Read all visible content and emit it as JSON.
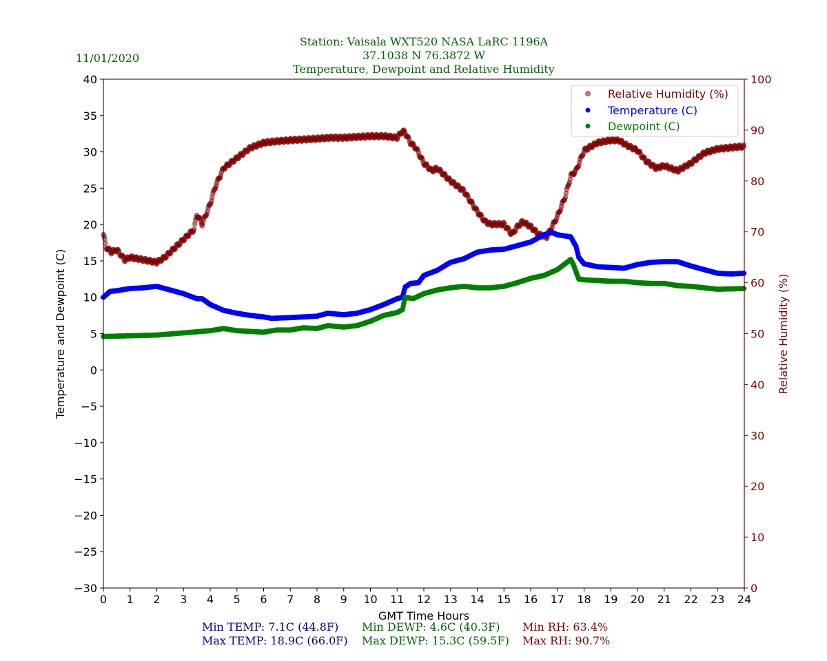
{
  "date": "11/01/2020",
  "title_lines": [
    "Station:  Vaisala WXT520  NASA LaRC 1196A",
    "37.1038 N 76.3872 W",
    "Temperature, Dewpoint and Relative Humidity"
  ],
  "stats": {
    "min_temp": "Min TEMP: 7.1C (44.8F)",
    "max_temp": "Max TEMP: 18.9C (66.0F)",
    "min_dewp": "Min DEWP: 4.6C (40.3F)",
    "max_dewp": "Max DEWP: 15.3C (59.5F)",
    "min_rh": "Min RH: 63.4%",
    "max_rh": "Max RH: 90.7%"
  },
  "colors": {
    "temp": "#0000ff",
    "dew": "#008000",
    "rh": "#800000",
    "title": "#006400",
    "stat_temp": "#00008b",
    "stat_dew": "#006400",
    "stat_rh": "#8b0000"
  },
  "chart_data": {
    "type": "scatter",
    "xlabel": "GMT Time Hours",
    "ylabel": "Temperature and Dewpoint (C)",
    "y2label": "Relative Humidity (%)",
    "xlim": [
      0,
      24
    ],
    "ylim": [
      -30,
      40
    ],
    "y2lim": [
      0,
      100
    ],
    "xticks": [
      0,
      1,
      2,
      3,
      4,
      5,
      6,
      7,
      8,
      9,
      10,
      11,
      12,
      13,
      14,
      15,
      16,
      17,
      18,
      19,
      20,
      21,
      22,
      23,
      24
    ],
    "yticks": [
      -30,
      -25,
      -20,
      -15,
      -10,
      -5,
      0,
      5,
      10,
      15,
      20,
      25,
      30,
      35,
      40
    ],
    "y2ticks": [
      0,
      10,
      20,
      30,
      40,
      50,
      60,
      70,
      80,
      90,
      100
    ],
    "legend_position": "top-right",
    "series": [
      {
        "name": "Relative Humidity (%)",
        "axis": "right",
        "points": [
          [
            0,
            69.5
          ],
          [
            0.1,
            67
          ],
          [
            0.3,
            66
          ],
          [
            0.5,
            66.5
          ],
          [
            0.8,
            64.5
          ],
          [
            1,
            65
          ],
          [
            1.5,
            64.5
          ],
          [
            2,
            64
          ],
          [
            2.3,
            65
          ],
          [
            2.5,
            66
          ],
          [
            3,
            68.5
          ],
          [
            3.4,
            70.5
          ],
          [
            3.5,
            73.5
          ],
          [
            3.7,
            71.5
          ],
          [
            4,
            75.5
          ],
          [
            4.2,
            79
          ],
          [
            4.5,
            82.5
          ],
          [
            5,
            84.5
          ],
          [
            5.5,
            86.5
          ],
          [
            6,
            87.5
          ],
          [
            6.5,
            87.8
          ],
          [
            7,
            88
          ],
          [
            8,
            88.3
          ],
          [
            8.5,
            88.5
          ],
          [
            9,
            88.5
          ],
          [
            10,
            88.8
          ],
          [
            10.5,
            88.8
          ],
          [
            11,
            88.5
          ],
          [
            11.2,
            89.8
          ],
          [
            11.3,
            89.5
          ],
          [
            11.5,
            87.5
          ],
          [
            11.7,
            86.5
          ],
          [
            12,
            83.5
          ],
          [
            12.3,
            82
          ],
          [
            12.5,
            82.5
          ],
          [
            13,
            80
          ],
          [
            13.5,
            78
          ],
          [
            14,
            74
          ],
          [
            14.3,
            72
          ],
          [
            14.5,
            71.5
          ],
          [
            15,
            71.5
          ],
          [
            15.3,
            69.5
          ],
          [
            15.5,
            71
          ],
          [
            15.7,
            72
          ],
          [
            16,
            71
          ],
          [
            16.3,
            69.5
          ],
          [
            16.6,
            69
          ],
          [
            17,
            73
          ],
          [
            17.3,
            77
          ],
          [
            17.5,
            81
          ],
          [
            17.7,
            82
          ],
          [
            18,
            86
          ],
          [
            18.5,
            87.5
          ],
          [
            19,
            88
          ],
          [
            19.3,
            88
          ],
          [
            19.6,
            87
          ],
          [
            20,
            86
          ],
          [
            20.3,
            84
          ],
          [
            20.7,
            82.5
          ],
          [
            21,
            83
          ],
          [
            21.5,
            82
          ],
          [
            22,
            83.5
          ],
          [
            22.5,
            85.5
          ],
          [
            23,
            86.3
          ],
          [
            24,
            86.8
          ]
        ]
      },
      {
        "name": "Temperature (C)",
        "axis": "left",
        "points": [
          [
            0,
            10
          ],
          [
            0.25,
            10.8
          ],
          [
            0.5,
            10.9
          ],
          [
            1,
            11.2
          ],
          [
            1.5,
            11.3
          ],
          [
            2,
            11.5
          ],
          [
            2.5,
            11
          ],
          [
            3,
            10.5
          ],
          [
            3.5,
            9.8
          ],
          [
            3.7,
            9.8
          ],
          [
            4,
            9
          ],
          [
            4.5,
            8.2
          ],
          [
            5,
            7.8
          ],
          [
            5.5,
            7.5
          ],
          [
            6,
            7.3
          ],
          [
            6.3,
            7.1
          ],
          [
            7,
            7.2
          ],
          [
            7.5,
            7.3
          ],
          [
            8,
            7.4
          ],
          [
            8.4,
            7.8
          ],
          [
            9,
            7.6
          ],
          [
            9.5,
            7.8
          ],
          [
            10,
            8.3
          ],
          [
            10.5,
            9
          ],
          [
            11,
            9.8
          ],
          [
            11.2,
            10
          ],
          [
            11.3,
            11.4
          ],
          [
            11.5,
            11.9
          ],
          [
            11.8,
            12
          ],
          [
            12,
            13
          ],
          [
            12.5,
            13.7
          ],
          [
            13,
            14.8
          ],
          [
            13.5,
            15.3
          ],
          [
            14,
            16.2
          ],
          [
            14.5,
            16.5
          ],
          [
            15,
            16.6
          ],
          [
            15.5,
            17.1
          ],
          [
            16,
            17.6
          ],
          [
            16.5,
            18.6
          ],
          [
            16.8,
            18.9
          ],
          [
            17,
            18.6
          ],
          [
            17.5,
            18.3
          ],
          [
            17.7,
            17
          ],
          [
            17.8,
            15.5
          ],
          [
            18,
            14.6
          ],
          [
            18.5,
            14.2
          ],
          [
            19,
            14.1
          ],
          [
            19.5,
            14
          ],
          [
            20,
            14.5
          ],
          [
            20.5,
            14.8
          ],
          [
            21,
            14.9
          ],
          [
            21.5,
            14.9
          ],
          [
            22,
            14.3
          ],
          [
            22.5,
            13.8
          ],
          [
            23,
            13.3
          ],
          [
            23.5,
            13.2
          ],
          [
            24,
            13.3
          ]
        ]
      },
      {
        "name": "Dewpoint (C)",
        "axis": "left",
        "points": [
          [
            0,
            4.6
          ],
          [
            1,
            4.7
          ],
          [
            2,
            4.8
          ],
          [
            3,
            5.1
          ],
          [
            4,
            5.4
          ],
          [
            4.5,
            5.7
          ],
          [
            5,
            5.4
          ],
          [
            6,
            5.2
          ],
          [
            6.5,
            5.5
          ],
          [
            7,
            5.5
          ],
          [
            7.5,
            5.8
          ],
          [
            8,
            5.7
          ],
          [
            8.4,
            6.1
          ],
          [
            9,
            5.9
          ],
          [
            9.5,
            6.1
          ],
          [
            10,
            6.7
          ],
          [
            10.5,
            7.5
          ],
          [
            11,
            7.9
          ],
          [
            11.2,
            8.3
          ],
          [
            11.3,
            10
          ],
          [
            11.6,
            9.8
          ],
          [
            12,
            10.5
          ],
          [
            12.5,
            11
          ],
          [
            13,
            11.3
          ],
          [
            13.5,
            11.5
          ],
          [
            14,
            11.3
          ],
          [
            14.5,
            11.3
          ],
          [
            15,
            11.5
          ],
          [
            15.5,
            12
          ],
          [
            16,
            12.6
          ],
          [
            16.5,
            13
          ],
          [
            17,
            13.8
          ],
          [
            17.5,
            15.2
          ],
          [
            17.6,
            14.5
          ],
          [
            17.8,
            12.5
          ],
          [
            18,
            12.4
          ],
          [
            19,
            12.2
          ],
          [
            19.5,
            12.2
          ],
          [
            20,
            12
          ],
          [
            20.5,
            11.9
          ],
          [
            21,
            11.9
          ],
          [
            21.5,
            11.6
          ],
          [
            22,
            11.5
          ],
          [
            23,
            11.1
          ],
          [
            24,
            11.2
          ]
        ]
      }
    ]
  }
}
